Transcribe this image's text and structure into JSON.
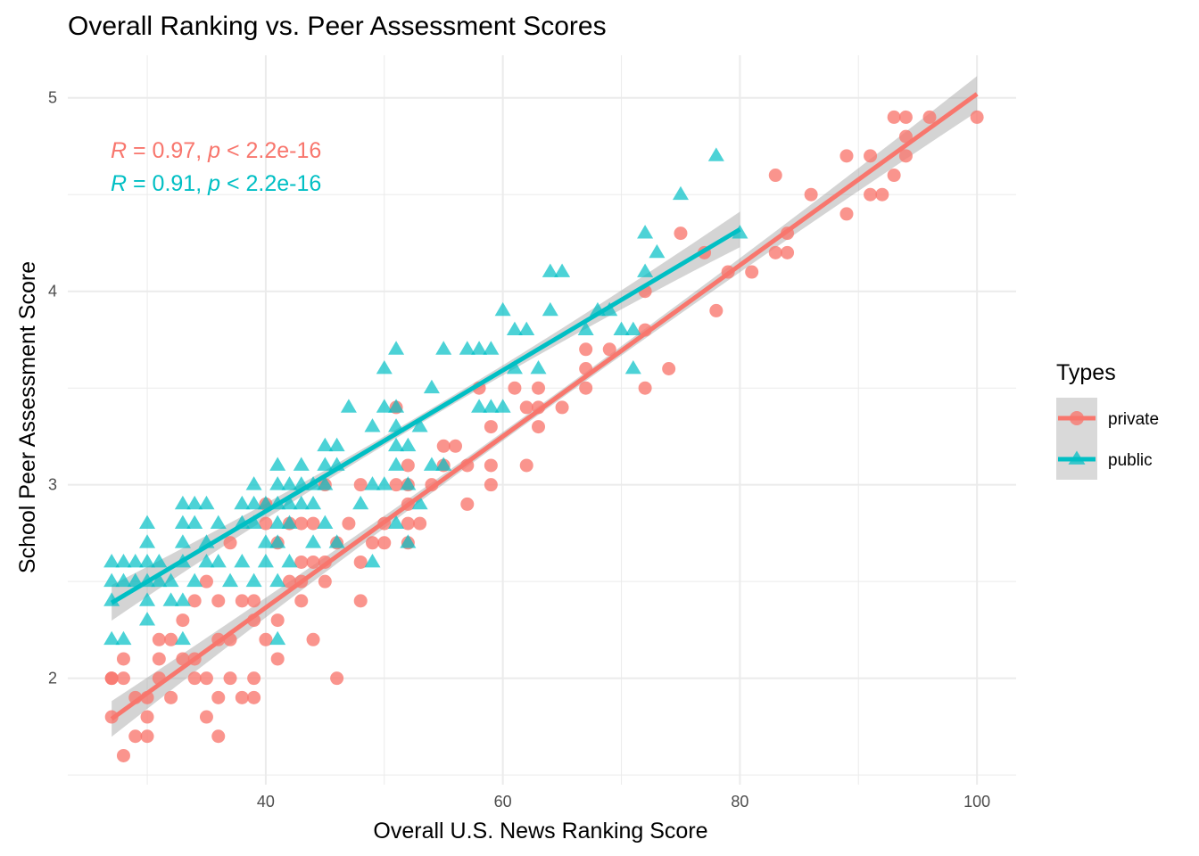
{
  "chart_data": {
    "type": "scatter",
    "title": "Overall Ranking vs. Peer Assessment Scores",
    "xlabel": "Overall U.S. News Ranking Score",
    "ylabel": "School Peer Assessment Score",
    "xlim": [
      23.3,
      103.3
    ],
    "ylim": [
      1.45,
      5.22
    ],
    "x_ticks": [
      40,
      60,
      80,
      100
    ],
    "y_ticks": [
      2,
      3,
      4,
      5
    ],
    "grid": true,
    "legend": {
      "title": "Types",
      "placement": "right"
    },
    "annotations": [
      {
        "text": "R = 0.97, p < 2.2e-16",
        "r": "0.97",
        "p": "2.2e-16",
        "color": "#F8766D"
      },
      {
        "text": "R = 0.91, p < 2.2e-16",
        "r": "0.91",
        "p": "2.2e-16",
        "color": "#00BFC4"
      }
    ],
    "series": [
      {
        "name": "private",
        "color": "#F8766D",
        "marker": "circle",
        "fit": {
          "x": [
            27,
            100
          ],
          "y": [
            1.79,
            5.02
          ]
        },
        "points": [
          [
            27,
            1.8
          ],
          [
            27,
            2.0
          ],
          [
            27,
            2.0
          ],
          [
            28,
            1.6
          ],
          [
            28,
            2.0
          ],
          [
            28,
            2.1
          ],
          [
            29,
            1.7
          ],
          [
            29,
            1.9
          ],
          [
            30,
            1.7
          ],
          [
            30,
            1.8
          ],
          [
            30,
            1.9
          ],
          [
            31,
            2.0
          ],
          [
            31,
            2.1
          ],
          [
            31,
            2.2
          ],
          [
            32,
            1.9
          ],
          [
            32,
            2.2
          ],
          [
            33,
            2.1
          ],
          [
            33,
            2.3
          ],
          [
            34,
            2.0
          ],
          [
            34,
            2.1
          ],
          [
            34,
            2.4
          ],
          [
            35,
            1.8
          ],
          [
            35,
            2.0
          ],
          [
            35,
            2.5
          ],
          [
            36,
            1.7
          ],
          [
            36,
            1.9
          ],
          [
            36,
            2.2
          ],
          [
            36,
            2.4
          ],
          [
            37,
            2.0
          ],
          [
            37,
            2.2
          ],
          [
            37,
            2.7
          ],
          [
            38,
            1.9
          ],
          [
            38,
            2.4
          ],
          [
            39,
            1.9
          ],
          [
            39,
            2.0
          ],
          [
            39,
            2.3
          ],
          [
            39,
            2.4
          ],
          [
            40,
            2.2
          ],
          [
            40,
            2.8
          ],
          [
            40,
            2.9
          ],
          [
            41,
            2.1
          ],
          [
            41,
            2.3
          ],
          [
            41,
            2.7
          ],
          [
            42,
            2.5
          ],
          [
            42,
            2.8
          ],
          [
            43,
            2.4
          ],
          [
            43,
            2.5
          ],
          [
            43,
            2.6
          ],
          [
            43,
            2.8
          ],
          [
            44,
            2.2
          ],
          [
            44,
            2.6
          ],
          [
            44,
            2.8
          ],
          [
            45,
            2.5
          ],
          [
            45,
            2.6
          ],
          [
            45,
            3.0
          ],
          [
            46,
            2.0
          ],
          [
            46,
            2.7
          ],
          [
            47,
            2.8
          ],
          [
            48,
            2.4
          ],
          [
            48,
            2.6
          ],
          [
            48,
            3.0
          ],
          [
            49,
            2.7
          ],
          [
            50,
            2.7
          ],
          [
            50,
            2.8
          ],
          [
            51,
            3.0
          ],
          [
            51,
            3.4
          ],
          [
            52,
            2.7
          ],
          [
            52,
            2.8
          ],
          [
            52,
            2.9
          ],
          [
            52,
            3.0
          ],
          [
            52,
            3.1
          ],
          [
            53,
            2.8
          ],
          [
            54,
            3.0
          ],
          [
            55,
            3.1
          ],
          [
            55,
            3.2
          ],
          [
            56,
            3.2
          ],
          [
            57,
            2.9
          ],
          [
            57,
            3.1
          ],
          [
            58,
            3.5
          ],
          [
            59,
            3.0
          ],
          [
            59,
            3.1
          ],
          [
            59,
            3.3
          ],
          [
            61,
            3.5
          ],
          [
            62,
            3.1
          ],
          [
            62,
            3.4
          ],
          [
            63,
            3.3
          ],
          [
            63,
            3.4
          ],
          [
            63,
            3.5
          ],
          [
            65,
            3.4
          ],
          [
            67,
            3.5
          ],
          [
            67,
            3.6
          ],
          [
            67,
            3.7
          ],
          [
            69,
            3.7
          ],
          [
            72,
            3.5
          ],
          [
            72,
            3.8
          ],
          [
            72,
            4.0
          ],
          [
            74,
            3.6
          ],
          [
            75,
            4.3
          ],
          [
            77,
            4.2
          ],
          [
            78,
            3.9
          ],
          [
            79,
            4.1
          ],
          [
            81,
            4.1
          ],
          [
            83,
            4.2
          ],
          [
            83,
            4.6
          ],
          [
            84,
            4.2
          ],
          [
            84,
            4.3
          ],
          [
            86,
            4.5
          ],
          [
            89,
            4.4
          ],
          [
            89,
            4.7
          ],
          [
            91,
            4.5
          ],
          [
            91,
            4.7
          ],
          [
            92,
            4.5
          ],
          [
            93,
            4.6
          ],
          [
            93,
            4.9
          ],
          [
            94,
            4.7
          ],
          [
            94,
            4.8
          ],
          [
            94,
            4.9
          ],
          [
            96,
            4.9
          ],
          [
            100,
            4.9
          ]
        ]
      },
      {
        "name": "public",
        "color": "#00BFC4",
        "marker": "triangle",
        "fit": {
          "x": [
            27,
            80
          ],
          "y": [
            2.39,
            4.32
          ]
        },
        "points": [
          [
            27,
            2.2
          ],
          [
            27,
            2.4
          ],
          [
            27,
            2.5
          ],
          [
            27,
            2.6
          ],
          [
            28,
            2.2
          ],
          [
            28,
            2.5
          ],
          [
            28,
            2.6
          ],
          [
            29,
            2.5
          ],
          [
            29,
            2.6
          ],
          [
            30,
            2.3
          ],
          [
            30,
            2.4
          ],
          [
            30,
            2.5
          ],
          [
            30,
            2.6
          ],
          [
            30,
            2.7
          ],
          [
            30,
            2.8
          ],
          [
            31,
            2.5
          ],
          [
            31,
            2.6
          ],
          [
            32,
            2.4
          ],
          [
            32,
            2.5
          ],
          [
            33,
            2.2
          ],
          [
            33,
            2.4
          ],
          [
            33,
            2.6
          ],
          [
            33,
            2.7
          ],
          [
            33,
            2.8
          ],
          [
            33,
            2.9
          ],
          [
            34,
            2.5
          ],
          [
            34,
            2.8
          ],
          [
            34,
            2.9
          ],
          [
            35,
            2.6
          ],
          [
            35,
            2.7
          ],
          [
            35,
            2.9
          ],
          [
            36,
            2.6
          ],
          [
            36,
            2.8
          ],
          [
            37,
            2.5
          ],
          [
            38,
            2.6
          ],
          [
            38,
            2.8
          ],
          [
            38,
            2.9
          ],
          [
            39,
            2.5
          ],
          [
            39,
            2.8
          ],
          [
            39,
            2.9
          ],
          [
            39,
            3.0
          ],
          [
            40,
            2.6
          ],
          [
            40,
            2.7
          ],
          [
            40,
            2.9
          ],
          [
            41,
            2.2
          ],
          [
            41,
            2.5
          ],
          [
            41,
            2.7
          ],
          [
            41,
            2.8
          ],
          [
            41,
            2.9
          ],
          [
            41,
            3.0
          ],
          [
            41,
            3.1
          ],
          [
            42,
            2.6
          ],
          [
            42,
            2.8
          ],
          [
            42,
            2.9
          ],
          [
            42,
            3.0
          ],
          [
            43,
            2.9
          ],
          [
            43,
            3.0
          ],
          [
            43,
            3.1
          ],
          [
            44,
            2.7
          ],
          [
            44,
            2.9
          ],
          [
            44,
            3.0
          ],
          [
            45,
            2.8
          ],
          [
            45,
            3.0
          ],
          [
            45,
            3.1
          ],
          [
            45,
            3.2
          ],
          [
            46,
            2.7
          ],
          [
            46,
            3.1
          ],
          [
            46,
            3.2
          ],
          [
            47,
            3.4
          ],
          [
            48,
            2.9
          ],
          [
            49,
            2.6
          ],
          [
            49,
            3.0
          ],
          [
            49,
            3.3
          ],
          [
            50,
            3.0
          ],
          [
            50,
            3.4
          ],
          [
            50,
            3.6
          ],
          [
            51,
            2.8
          ],
          [
            51,
            3.1
          ],
          [
            51,
            3.2
          ],
          [
            51,
            3.3
          ],
          [
            51,
            3.4
          ],
          [
            51,
            3.7
          ],
          [
            52,
            2.7
          ],
          [
            52,
            3.0
          ],
          [
            52,
            3.2
          ],
          [
            53,
            2.9
          ],
          [
            53,
            3.3
          ],
          [
            54,
            3.1
          ],
          [
            54,
            3.5
          ],
          [
            55,
            3.1
          ],
          [
            55,
            3.7
          ],
          [
            57,
            3.7
          ],
          [
            58,
            3.4
          ],
          [
            58,
            3.7
          ],
          [
            59,
            3.4
          ],
          [
            59,
            3.7
          ],
          [
            60,
            3.4
          ],
          [
            60,
            3.9
          ],
          [
            61,
            3.6
          ],
          [
            61,
            3.8
          ],
          [
            62,
            3.8
          ],
          [
            63,
            3.6
          ],
          [
            64,
            3.9
          ],
          [
            64,
            4.1
          ],
          [
            65,
            4.1
          ],
          [
            67,
            3.8
          ],
          [
            68,
            3.9
          ],
          [
            69,
            3.9
          ],
          [
            70,
            3.8
          ],
          [
            71,
            3.6
          ],
          [
            71,
            3.8
          ],
          [
            72,
            4.1
          ],
          [
            72,
            4.3
          ],
          [
            73,
            4.2
          ],
          [
            75,
            4.5
          ],
          [
            78,
            4.7
          ],
          [
            80,
            4.3
          ]
        ]
      }
    ]
  }
}
